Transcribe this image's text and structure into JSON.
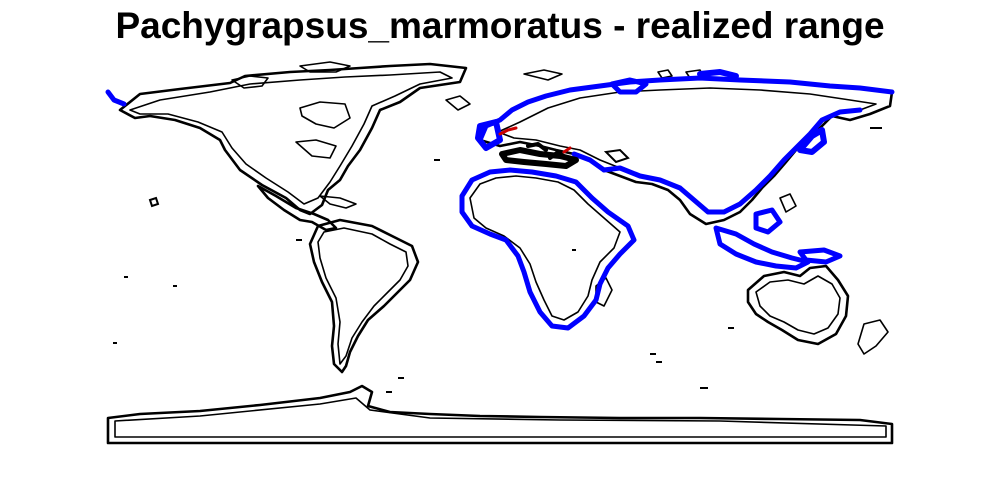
{
  "title": "Pachygrapsus_marmoratus - realized range",
  "map": {
    "projection": "equirectangular",
    "layers": [
      {
        "name": "coastline",
        "color": "#000000"
      },
      {
        "name": "realized-range",
        "color": "#0000ff"
      },
      {
        "name": "occurrence-highlight",
        "color": "#cc0000"
      }
    ]
  }
}
